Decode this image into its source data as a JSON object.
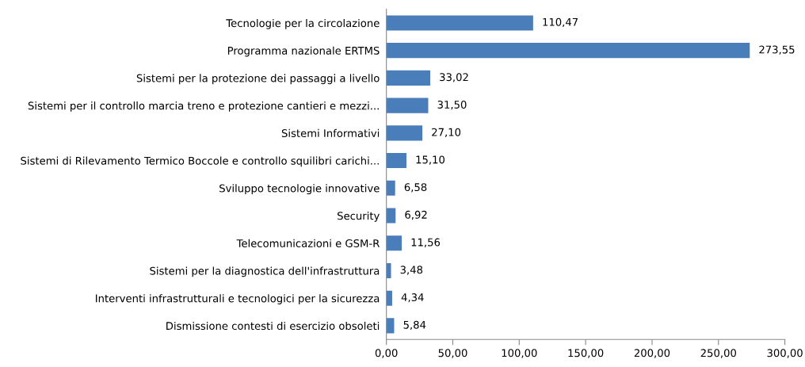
{
  "chart_data": {
    "type": "bar",
    "orientation": "horizontal",
    "categories": [
      "Tecnologie per la circolazione",
      "Programma nazionale ERTMS",
      "Sistemi per la protezione dei passaggi a livello",
      "Sistemi per il controllo marcia treno e protezione cantieri e mezzi...",
      "Sistemi Informativi",
      "Sistemi di Rilevamento Termico Boccole e controllo squilibri carichi...",
      "Sviluppo tecnologie innovative",
      "Security",
      "Telecomunicazioni e GSM-R",
      "Sistemi per la diagnostica dell'infrastruttura",
      "Interventi infrastrutturali e tecnologici per la sicurezza",
      "Dismissione contesti di esercizio obsoleti"
    ],
    "values": [
      110.47,
      273.55,
      33.02,
      31.5,
      27.1,
      15.1,
      6.58,
      6.92,
      11.56,
      3.48,
      4.34,
      5.84
    ],
    "value_labels": [
      "110,47",
      "273,55",
      "33,02",
      "31,50",
      "27,10",
      "15,10",
      "6,58",
      "6,92",
      "11,56",
      "3,48",
      "4,34",
      "5,84"
    ],
    "color": "#4a7ebb",
    "xlim": [
      0,
      300
    ],
    "xticks": [
      {
        "value": 0,
        "label": "0,00"
      },
      {
        "value": 50,
        "label": "50,00"
      },
      {
        "value": 100,
        "label": "100,00"
      },
      {
        "value": 150,
        "label": "150,00"
      },
      {
        "value": 200,
        "label": "200,00"
      },
      {
        "value": 250,
        "label": "250,00"
      },
      {
        "value": 300,
        "label": "300,00"
      }
    ],
    "grid": false,
    "legend": false
  }
}
